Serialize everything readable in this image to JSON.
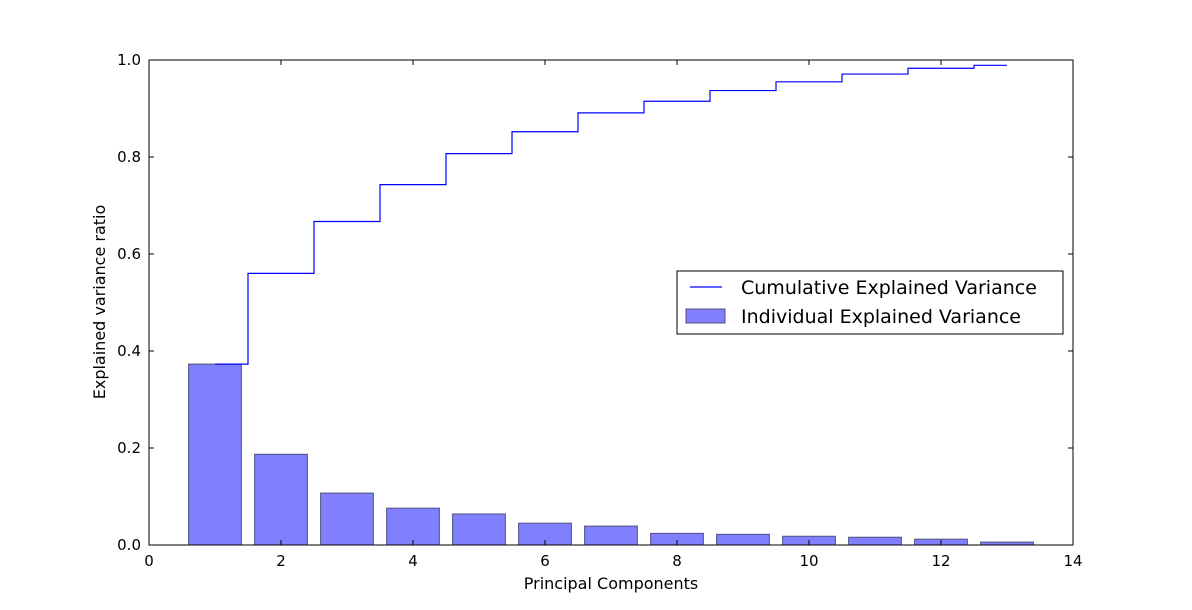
{
  "chart_data": {
    "type": "bar",
    "title": "",
    "xlabel": "Principal Components",
    "ylabel": "Explained variance ratio",
    "xlim": [
      0,
      14
    ],
    "ylim": [
      0,
      1.0
    ],
    "xticks": [
      0,
      2,
      4,
      6,
      8,
      10,
      12,
      14
    ],
    "yticks": [
      0.0,
      0.2,
      0.4,
      0.6,
      0.8,
      1.0
    ],
    "grid": false,
    "legend_position": "center-right",
    "categories": [
      1,
      2,
      3,
      4,
      5,
      6,
      7,
      8,
      9,
      10,
      11,
      12,
      13
    ],
    "series": [
      {
        "name": "Individual Explained Variance",
        "kind": "bar",
        "color": "#8080ff",
        "values": [
          0.373,
          0.187,
          0.107,
          0.076,
          0.064,
          0.045,
          0.039,
          0.024,
          0.022,
          0.018,
          0.016,
          0.012,
          0.006
        ]
      },
      {
        "name": "Cumulative Explained Variance",
        "kind": "step",
        "color": "#0000ff",
        "values": [
          0.373,
          0.56,
          0.667,
          0.743,
          0.807,
          0.852,
          0.891,
          0.915,
          0.937,
          0.955,
          0.971,
          0.983,
          0.989
        ]
      }
    ]
  }
}
